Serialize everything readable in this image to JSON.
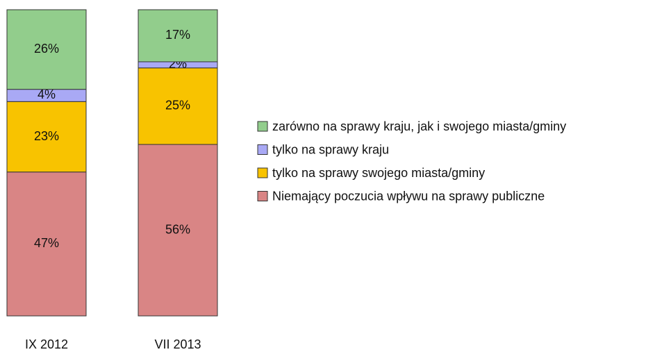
{
  "chart_data": {
    "type": "stacked-bar",
    "categories": [
      "IX 2012",
      "VII 2013"
    ],
    "series": [
      {
        "name": "Niemający poczucia wpływu na sprawy publiczne",
        "color": "#d98585",
        "values": [
          47,
          56
        ],
        "value_labels": [
          "47%",
          "56%"
        ]
      },
      {
        "name": "tylko na sprawy swojego miasta/gminy",
        "color": "#f8c300",
        "values": [
          23,
          25
        ],
        "value_labels": [
          "23%",
          "25%"
        ]
      },
      {
        "name": "tylko na sprawy kraju",
        "color": "#a9a9f5",
        "values": [
          4,
          2
        ],
        "value_labels": [
          "4%",
          "2%"
        ]
      },
      {
        "name": "zarówno na sprawy kraju, jak i swojego miasta/gminy",
        "color": "#92cd8c",
        "values": [
          26,
          17
        ],
        "value_labels": [
          "26%",
          "17%"
        ]
      }
    ],
    "legend": "right"
  }
}
